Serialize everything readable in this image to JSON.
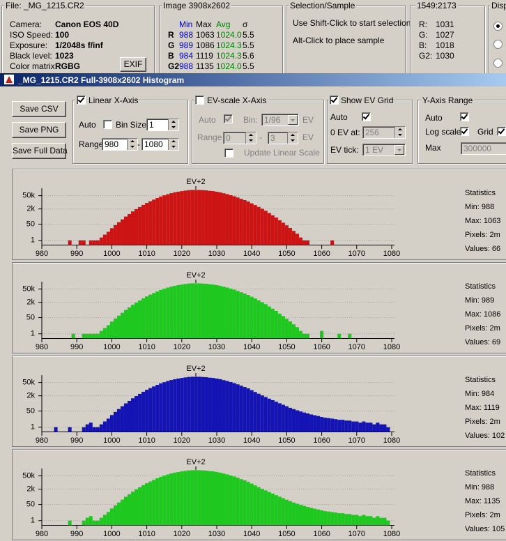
{
  "file_panel": {
    "title": "File: _MG_1215.CR2",
    "rows": [
      [
        "Camera:",
        "Canon EOS 40D"
      ],
      [
        "ISO Speed:",
        "100"
      ],
      [
        "Exposure:",
        "1/2048s f/inf"
      ],
      [
        "Black level:",
        "1023"
      ],
      [
        "Color matrix:",
        "RGBG"
      ]
    ],
    "button": "EXIF"
  },
  "image_panel": {
    "title": "Image 3908x2602",
    "header": [
      "Min",
      "Max",
      "Avg",
      "σ"
    ],
    "rows": [
      [
        "R",
        "988",
        "1063",
        "1024.0",
        "5.5"
      ],
      [
        "G",
        "989",
        "1086",
        "1024.3",
        "5.5"
      ],
      [
        "B",
        "984",
        "1119",
        "1024.3",
        "5.6"
      ],
      [
        "G2",
        "988",
        "1135",
        "1024.0",
        "5.5"
      ]
    ]
  },
  "selection_panel": {
    "title": "Selection/Sample",
    "lines": [
      "Use Shift-Click to start selection",
      "Alt-Click to place sample"
    ]
  },
  "pixel_panel": {
    "title": "1549:2173",
    "rows": [
      [
        "R:",
        "1031"
      ],
      [
        "G:",
        "1027"
      ],
      [
        "B:",
        "1018"
      ],
      [
        "G2:",
        "1030"
      ]
    ]
  },
  "display_panel": {
    "title": "Displ"
  },
  "window": {
    "title": "_MG_1215.CR2 Full-3908x2602 Histogram"
  },
  "buttons": [
    "Save CSV",
    "Save PNG",
    "Save Full Data"
  ],
  "linear_x_axis": {
    "title": "Linear X-Axis",
    "auto": "Auto",
    "bin_size_label": "Bin Size:",
    "bin_size": "1",
    "range_label": "Range:",
    "range_from": "980",
    "dash": "-",
    "range_to": "1080"
  },
  "ev_x_axis": {
    "title": "EV-scale X-Axis",
    "auto": "Auto",
    "bin_label": "Bin:",
    "bin": "1/96",
    "bin_unit": "EV",
    "range_label": "Range",
    "range_from": "0",
    "dash": "-",
    "range_to": "3",
    "range_unit": "EV",
    "update": "Update Linear Scale"
  },
  "ev_grid": {
    "title": "Show EV Grid",
    "auto": "Auto",
    "zero_label": "0 EV at:",
    "zero": "256",
    "tick_label": "EV tick:",
    "tick": "1 EV"
  },
  "y_axis_range": {
    "title": "Y-Axis Range",
    "auto": "Auto",
    "log_label": "Log scale",
    "grid_label": "Grid",
    "max_label": "Max",
    "max": "300000"
  },
  "chart_data": [
    {
      "type": "bar",
      "annotation": "EV+2",
      "color": "#cc1414",
      "x": [
        988,
        991,
        992,
        994,
        995,
        996,
        997,
        998,
        999,
        1000,
        1001,
        1002,
        1003,
        1004,
        1005,
        1006,
        1007,
        1008,
        1009,
        1010,
        1011,
        1012,
        1013,
        1014,
        1015,
        1016,
        1017,
        1018,
        1019,
        1020,
        1021,
        1022,
        1023,
        1024,
        1025,
        1026,
        1027,
        1028,
        1029,
        1030,
        1031,
        1032,
        1033,
        1034,
        1035,
        1036,
        1037,
        1038,
        1039,
        1040,
        1041,
        1042,
        1043,
        1044,
        1045,
        1046,
        1047,
        1048,
        1049,
        1050,
        1051,
        1052,
        1053,
        1054,
        1055,
        1056,
        1063
      ],
      "values": [
        1,
        1,
        1,
        1,
        1,
        1,
        2,
        4,
        8,
        19,
        40,
        81,
        160,
        320,
        590,
        1100,
        1900,
        3200,
        5300,
        8500,
        13000,
        19000,
        28000,
        40000,
        54000,
        71000,
        91000,
        110000,
        130000,
        150000,
        170000,
        190000,
        200000,
        200000,
        200000,
        190000,
        180000,
        160000,
        150000,
        130000,
        110000,
        89000,
        72000,
        56000,
        43000,
        32000,
        23000,
        17000,
        12000,
        7800,
        5100,
        3300,
        2100,
        1300,
        740,
        430,
        250,
        130,
        72,
        38,
        20,
        10,
        5,
        2,
        1,
        1,
        1
      ],
      "xlim": [
        980,
        1080
      ],
      "xticks": [
        980,
        990,
        1000,
        1010,
        1020,
        1030,
        1040,
        1050,
        1060,
        1070,
        1080
      ],
      "ylim": [
        0.35,
        300000
      ],
      "yticks": [
        1,
        50,
        {
          "value": 2000,
          "label": "2k"
        },
        {
          "value": 50000,
          "label": "50k"
        }
      ],
      "log_scale": true,
      "grid": true,
      "stats": [
        "Statistics",
        "Min: 988",
        "Max: 1063",
        "Pixels: 2m",
        "Values: 66"
      ]
    },
    {
      "type": "bar",
      "annotation": "EV+2",
      "color": "#1ec81e",
      "x": [
        989,
        992,
        993,
        994,
        995,
        996,
        997,
        998,
        999,
        1000,
        1001,
        1002,
        1003,
        1004,
        1005,
        1006,
        1007,
        1008,
        1009,
        1010,
        1011,
        1012,
        1013,
        1014,
        1015,
        1016,
        1017,
        1018,
        1019,
        1020,
        1021,
        1022,
        1023,
        1024,
        1025,
        1026,
        1027,
        1028,
        1029,
        1030,
        1031,
        1032,
        1033,
        1034,
        1035,
        1036,
        1037,
        1038,
        1039,
        1040,
        1041,
        1042,
        1043,
        1044,
        1045,
        1046,
        1047,
        1048,
        1049,
        1050,
        1051,
        1052,
        1053,
        1054,
        1055,
        1056,
        1060,
        1065,
        1068
      ],
      "values": [
        1,
        1,
        1,
        1,
        1,
        1,
        2,
        4,
        8,
        19,
        40,
        81,
        160,
        320,
        590,
        1100,
        1900,
        3200,
        5300,
        8500,
        13000,
        19000,
        28000,
        40000,
        54000,
        71000,
        91000,
        110000,
        130000,
        150000,
        170000,
        190000,
        200000,
        200000,
        200000,
        190000,
        180000,
        160000,
        150000,
        130000,
        110000,
        89000,
        72000,
        56000,
        43000,
        32000,
        23000,
        17000,
        12000,
        7800,
        5100,
        3300,
        2100,
        1300,
        740,
        430,
        250,
        130,
        72,
        38,
        20,
        10,
        5,
        2,
        1,
        1,
        2,
        1,
        1
      ],
      "xlim": [
        980,
        1080
      ],
      "xticks": [
        980,
        990,
        1000,
        1010,
        1020,
        1030,
        1040,
        1050,
        1060,
        1070,
        1080
      ],
      "ylim": [
        0.35,
        300000
      ],
      "yticks": [
        1,
        50,
        {
          "value": 2000,
          "label": "2k"
        },
        {
          "value": 50000,
          "label": "50k"
        }
      ],
      "log_scale": true,
      "grid": true,
      "stats": [
        "Statistics",
        "Min: 989",
        "Max: 1086",
        "Pixels: 2m",
        "Values: 69"
      ]
    },
    {
      "type": "bar",
      "annotation": "EV+2",
      "color": "#1414b4",
      "x": [
        984,
        988,
        992,
        993,
        994,
        995,
        996,
        997,
        998,
        999,
        1000,
        1001,
        1002,
        1003,
        1004,
        1005,
        1006,
        1007,
        1008,
        1009,
        1010,
        1011,
        1012,
        1013,
        1014,
        1015,
        1016,
        1017,
        1018,
        1019,
        1020,
        1021,
        1022,
        1023,
        1024,
        1025,
        1026,
        1027,
        1028,
        1029,
        1030,
        1031,
        1032,
        1033,
        1034,
        1035,
        1036,
        1037,
        1038,
        1039,
        1040,
        1041,
        1042,
        1043,
        1044,
        1045,
        1046,
        1047,
        1048,
        1049,
        1050,
        1051,
        1052,
        1053,
        1054,
        1055,
        1056,
        1057,
        1058,
        1059,
        1060,
        1061,
        1062,
        1063,
        1064,
        1065,
        1066,
        1067,
        1068,
        1069,
        1070,
        1071,
        1072,
        1073,
        1074,
        1075,
        1076,
        1077,
        1078,
        1079
      ],
      "values": [
        1,
        1,
        1,
        2,
        3,
        1,
        1,
        2,
        4,
        8,
        19,
        40,
        81,
        160,
        320,
        590,
        1100,
        1900,
        3200,
        5300,
        8500,
        13000,
        19000,
        28000,
        40000,
        54000,
        71000,
        91000,
        110000,
        130000,
        150000,
        170000,
        190000,
        200000,
        200000,
        200000,
        190000,
        180000,
        160000,
        150000,
        130000,
        110000,
        89000,
        72000,
        56000,
        43000,
        32000,
        23000,
        17000,
        12000,
        7800,
        5000,
        3300,
        2200,
        1500,
        1000,
        700,
        480,
        330,
        230,
        160,
        110,
        80,
        60,
        45,
        35,
        28,
        22,
        18,
        15,
        12,
        10,
        9,
        8,
        7,
        6,
        6,
        5,
        5,
        4,
        4,
        3,
        4,
        3,
        3,
        2,
        3,
        2,
        2,
        1
      ],
      "xlim": [
        980,
        1080
      ],
      "xticks": [
        980,
        990,
        1000,
        1010,
        1020,
        1030,
        1040,
        1050,
        1060,
        1070,
        1080
      ],
      "ylim": [
        0.35,
        300000
      ],
      "yticks": [
        1,
        50,
        {
          "value": 2000,
          "label": "2k"
        },
        {
          "value": 50000,
          "label": "50k"
        }
      ],
      "log_scale": true,
      "grid": true,
      "stats": [
        "Statistics",
        "Min: 984",
        "Max: 1119",
        "Pixels: 2m",
        "Values: 102"
      ]
    },
    {
      "type": "bar",
      "annotation": "EV+2",
      "color": "#1ec81e",
      "x": [
        988,
        992,
        993,
        994,
        995,
        996,
        997,
        998,
        999,
        1000,
        1001,
        1002,
        1003,
        1004,
        1005,
        1006,
        1007,
        1008,
        1009,
        1010,
        1011,
        1012,
        1013,
        1014,
        1015,
        1016,
        1017,
        1018,
        1019,
        1020,
        1021,
        1022,
        1023,
        1024,
        1025,
        1026,
        1027,
        1028,
        1029,
        1030,
        1031,
        1032,
        1033,
        1034,
        1035,
        1036,
        1037,
        1038,
        1039,
        1040,
        1041,
        1042,
        1043,
        1044,
        1045,
        1046,
        1047,
        1048,
        1049,
        1050,
        1051,
        1052,
        1053,
        1054,
        1055,
        1056,
        1057,
        1058,
        1059,
        1060,
        1061,
        1062,
        1063,
        1064,
        1065,
        1066,
        1067,
        1068,
        1069,
        1070,
        1071,
        1072,
        1073,
        1074,
        1075,
        1076,
        1077,
        1078,
        1079
      ],
      "values": [
        1,
        1,
        2,
        3,
        1,
        1,
        2,
        4,
        8,
        19,
        40,
        81,
        160,
        320,
        590,
        1100,
        1900,
        3200,
        5300,
        8500,
        13000,
        19000,
        28000,
        40000,
        54000,
        71000,
        91000,
        110000,
        130000,
        150000,
        170000,
        190000,
        200000,
        200000,
        200000,
        190000,
        180000,
        160000,
        150000,
        130000,
        110000,
        89000,
        72000,
        56000,
        43000,
        32000,
        23000,
        17000,
        12000,
        7800,
        5000,
        3300,
        2200,
        1500,
        1000,
        700,
        480,
        330,
        230,
        160,
        110,
        80,
        60,
        45,
        35,
        28,
        22,
        18,
        15,
        12,
        10,
        9,
        8,
        7,
        6,
        6,
        5,
        5,
        4,
        4,
        3,
        4,
        3,
        3,
        2,
        3,
        2,
        2,
        1
      ],
      "xlim": [
        980,
        1080
      ],
      "xticks": [
        980,
        990,
        1000,
        1010,
        1020,
        1030,
        1040,
        1050,
        1060,
        1070,
        1080
      ],
      "ylim": [
        0.35,
        300000
      ],
      "yticks": [
        1,
        50,
        {
          "value": 2000,
          "label": "2k"
        },
        {
          "value": 50000,
          "label": "50k"
        }
      ],
      "log_scale": true,
      "grid": true,
      "stats": [
        "Statistics",
        "Min: 988",
        "Max: 1135",
        "Pixels: 2m",
        "Values: 105"
      ]
    }
  ]
}
